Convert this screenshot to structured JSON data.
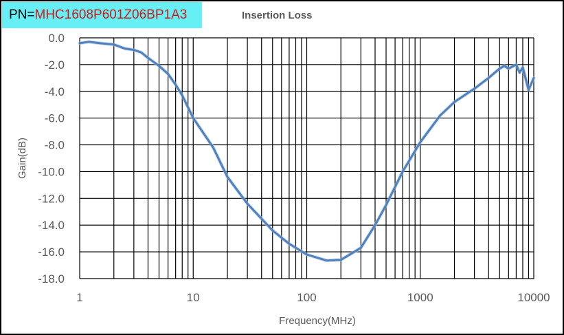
{
  "header": {
    "pn_prefix": "PN=",
    "pn_value": "MHC1608P601Z06BP1A3"
  },
  "chart_data": {
    "type": "line",
    "title": "Insertion Loss",
    "xlabel": "Frequency(MHz)",
    "ylabel": "Gain(dB)",
    "xscale": "log",
    "xlim": [
      1,
      10000
    ],
    "ylim": [
      -18,
      0
    ],
    "grid": true,
    "xticks": [
      1,
      10,
      100,
      1000,
      10000
    ],
    "xtick_labels": [
      "1",
      "10",
      "100",
      "1000",
      "10000"
    ],
    "yticks": [
      0,
      -2,
      -4,
      -6,
      -8,
      -10,
      -12,
      -14,
      -16,
      -18
    ],
    "ytick_labels": [
      "0.0",
      "-2.0",
      "-4.0",
      "-6.0",
      "-8.0",
      "-10.0",
      "-12.0",
      "-14.0",
      "-16.0",
      "-18.0"
    ],
    "series": [
      {
        "name": "Insertion Loss",
        "color": "#4f81bd",
        "x": [
          1,
          1.2,
          1.5,
          2,
          2.5,
          3,
          3.5,
          4,
          5,
          6,
          7,
          8,
          10,
          15,
          20,
          30,
          50,
          70,
          100,
          150,
          200,
          300,
          400,
          500,
          700,
          1000,
          1500,
          2000,
          3000,
          4000,
          5000,
          5500,
          6000,
          7000,
          7500,
          8000,
          9000,
          10000
        ],
        "y": [
          -0.4,
          -0.3,
          -0.4,
          -0.5,
          -0.8,
          -0.9,
          -1.1,
          -1.5,
          -2.1,
          -2.7,
          -3.5,
          -4.3,
          -6.0,
          -8.2,
          -10.4,
          -12.4,
          -14.4,
          -15.4,
          -16.2,
          -16.65,
          -16.6,
          -15.7,
          -14.0,
          -12.5,
          -10.0,
          -7.8,
          -5.8,
          -4.8,
          -3.8,
          -3.0,
          -2.3,
          -2.1,
          -2.3,
          -2.0,
          -2.6,
          -2.2,
          -3.9,
          -3.0
        ]
      }
    ]
  }
}
